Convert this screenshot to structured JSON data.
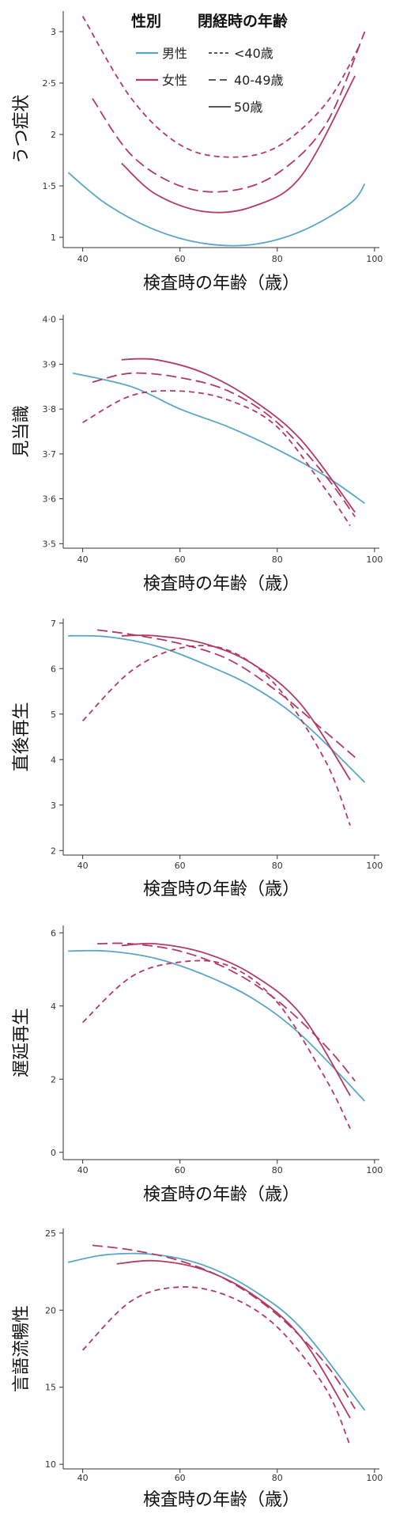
{
  "colors": {
    "male": "#5aa6c8",
    "female": "#b23a63",
    "axis": "#333333"
  },
  "legend": {
    "title_sex": "性別",
    "title_menopause": "閉経時の年齢",
    "male": "男性",
    "female": "女性",
    "lt40": "<40歳",
    "age40_49": "40-49歳",
    "age50": "50歳"
  },
  "chart_data": [
    {
      "type": "line",
      "ylabel": "うつ症状",
      "xlabel": "検査時の年齢（歳）",
      "xlim": [
        36,
        101
      ],
      "ylim": [
        0.9,
        3.2
      ],
      "xticks": [
        40,
        60,
        80,
        100
      ],
      "xtick_labels": [
        "40",
        "60",
        "80",
        "100"
      ],
      "yticks": [
        1,
        1.5,
        2,
        2.5,
        3
      ],
      "ytick_labels": [
        "1",
        "1·5",
        "2",
        "2·5",
        "3"
      ],
      "series": [
        {
          "sex": "male",
          "style": "solid",
          "x": [
            37,
            45,
            55,
            65,
            75,
            85,
            95,
            98
          ],
          "y": [
            1.63,
            1.32,
            1.07,
            0.94,
            0.93,
            1.06,
            1.33,
            1.52
          ]
        },
        {
          "sex": "female",
          "style": "dash",
          "x": [
            40,
            50,
            60,
            70,
            80,
            90,
            97
          ],
          "y": [
            3.15,
            2.35,
            1.9,
            1.78,
            1.88,
            2.3,
            2.87
          ]
        },
        {
          "sex": "female",
          "style": "longdash",
          "x": [
            42,
            50,
            60,
            70,
            80,
            90,
            98
          ],
          "y": [
            2.35,
            1.8,
            1.5,
            1.45,
            1.62,
            2.1,
            3.0
          ]
        },
        {
          "sex": "female",
          "style": "solid",
          "x": [
            48,
            55,
            65,
            75,
            85,
            96
          ],
          "y": [
            1.72,
            1.42,
            1.25,
            1.3,
            1.6,
            2.57
          ]
        }
      ]
    },
    {
      "type": "line",
      "ylabel": "見当識",
      "xlabel": "検査時の年齢（歳）",
      "xlim": [
        36,
        101
      ],
      "ylim": [
        3.49,
        4.01
      ],
      "xticks": [
        40,
        60,
        80,
        100
      ],
      "xtick_labels": [
        "40",
        "60",
        "80",
        "100"
      ],
      "yticks": [
        3.5,
        3.6,
        3.7,
        3.8,
        3.9,
        4.0
      ],
      "ytick_labels": [
        "3·5",
        "3·6",
        "3·7",
        "3·8",
        "3·9",
        "4·0"
      ],
      "series": [
        {
          "sex": "male",
          "style": "solid",
          "x": [
            38,
            50,
            60,
            70,
            80,
            90,
            98
          ],
          "y": [
            3.88,
            3.85,
            3.8,
            3.76,
            3.71,
            3.65,
            3.59
          ]
        },
        {
          "sex": "female",
          "style": "dash",
          "x": [
            40,
            50,
            60,
            70,
            80,
            90,
            95
          ],
          "y": [
            3.77,
            3.83,
            3.84,
            3.82,
            3.76,
            3.62,
            3.54
          ]
        },
        {
          "sex": "female",
          "style": "longdash",
          "x": [
            42,
            50,
            60,
            70,
            80,
            90,
            96
          ],
          "y": [
            3.86,
            3.88,
            3.87,
            3.84,
            3.77,
            3.65,
            3.56
          ]
        },
        {
          "sex": "female",
          "style": "solid",
          "x": [
            48,
            55,
            65,
            75,
            85,
            96
          ],
          "y": [
            3.91,
            3.91,
            3.88,
            3.82,
            3.73,
            3.57
          ]
        }
      ]
    },
    {
      "type": "line",
      "ylabel": "直後再生",
      "xlabel": "検査時の年齢（歳）",
      "xlim": [
        36,
        101
      ],
      "ylim": [
        1.9,
        7.1
      ],
      "xticks": [
        40,
        60,
        80,
        100
      ],
      "xtick_labels": [
        "40",
        "60",
        "80",
        "100"
      ],
      "yticks": [
        2,
        3,
        4,
        5,
        6,
        7
      ],
      "ytick_labels": [
        "2",
        "3",
        "4",
        "5",
        "6",
        "7"
      ],
      "series": [
        {
          "sex": "male",
          "style": "solid",
          "x": [
            37,
            45,
            55,
            65,
            75,
            85,
            98
          ],
          "y": [
            6.72,
            6.7,
            6.5,
            6.1,
            5.6,
            4.85,
            3.5
          ]
        },
        {
          "sex": "female",
          "style": "dash",
          "x": [
            40,
            50,
            60,
            70,
            80,
            90,
            95
          ],
          "y": [
            4.85,
            5.95,
            6.45,
            6.4,
            5.6,
            3.95,
            2.55
          ]
        },
        {
          "sex": "female",
          "style": "longdash",
          "x": [
            43,
            50,
            60,
            70,
            80,
            90,
            96
          ],
          "y": [
            6.85,
            6.75,
            6.55,
            6.2,
            5.5,
            4.6,
            4.05
          ]
        },
        {
          "sex": "female",
          "style": "solid",
          "x": [
            48,
            55,
            65,
            75,
            85,
            95
          ],
          "y": [
            6.72,
            6.72,
            6.55,
            6.1,
            5.2,
            3.55
          ]
        }
      ]
    },
    {
      "type": "line",
      "ylabel": "遅延再生",
      "xlabel": "検査時の年齢（歳）",
      "xlim": [
        36,
        101
      ],
      "ylim": [
        -0.2,
        6.2
      ],
      "xticks": [
        40,
        60,
        80,
        100
      ],
      "xtick_labels": [
        "40",
        "60",
        "80",
        "100"
      ],
      "yticks": [
        0,
        2,
        4,
        6
      ],
      "ytick_labels": [
        "0",
        "2",
        "4",
        "6"
      ],
      "series": [
        {
          "sex": "male",
          "style": "solid",
          "x": [
            37,
            45,
            55,
            65,
            75,
            85,
            98
          ],
          "y": [
            5.5,
            5.5,
            5.3,
            4.85,
            4.2,
            3.2,
            1.4
          ]
        },
        {
          "sex": "female",
          "style": "dash",
          "x": [
            40,
            50,
            60,
            70,
            80,
            90,
            95
          ],
          "y": [
            3.55,
            4.8,
            5.2,
            5.1,
            4.1,
            2.0,
            0.65
          ]
        },
        {
          "sex": "female",
          "style": "longdash",
          "x": [
            43,
            50,
            60,
            70,
            80,
            90,
            96
          ],
          "y": [
            5.7,
            5.7,
            5.5,
            5.0,
            4.15,
            2.9,
            1.95
          ]
        },
        {
          "sex": "female",
          "style": "solid",
          "x": [
            48,
            55,
            65,
            75,
            85,
            95
          ],
          "y": [
            5.65,
            5.7,
            5.45,
            4.85,
            3.75,
            1.55
          ]
        }
      ]
    },
    {
      "type": "line",
      "ylabel": "言語流暢性",
      "xlabel": "検査時の年齢（歳）",
      "xlim": [
        36,
        101
      ],
      "ylim": [
        9.7,
        25.3
      ],
      "xticks": [
        40,
        60,
        80,
        100
      ],
      "xtick_labels": [
        "40",
        "60",
        "80",
        "100"
      ],
      "yticks": [
        10,
        15,
        20,
        25
      ],
      "ytick_labels": [
        "10",
        "15",
        "20",
        "25"
      ],
      "series": [
        {
          "sex": "male",
          "style": "solid",
          "x": [
            37,
            45,
            55,
            65,
            75,
            85,
            98
          ],
          "y": [
            23.1,
            23.6,
            23.6,
            22.9,
            21.3,
            18.8,
            13.5
          ]
        },
        {
          "sex": "female",
          "style": "dash",
          "x": [
            40,
            50,
            60,
            70,
            80,
            90,
            95
          ],
          "y": [
            17.4,
            20.6,
            21.5,
            20.9,
            18.9,
            14.9,
            11.2
          ]
        },
        {
          "sex": "female",
          "style": "longdash",
          "x": [
            42,
            50,
            60,
            70,
            80,
            90,
            96
          ],
          "y": [
            24.2,
            23.9,
            23.2,
            21.9,
            19.7,
            16.5,
            13.6
          ]
        },
        {
          "sex": "female",
          "style": "solid",
          "x": [
            47,
            55,
            65,
            75,
            85,
            95
          ],
          "y": [
            23.0,
            23.2,
            22.6,
            21.0,
            18.2,
            13.0
          ]
        }
      ]
    }
  ]
}
